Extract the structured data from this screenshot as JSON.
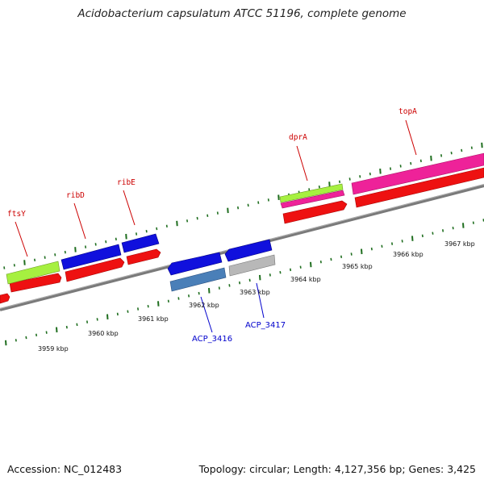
{
  "title": "Acidobacterium capsulatum ATCC 51196, complete genome",
  "footer": {
    "accession": "Accession: NC_012483",
    "summary": "Topology: circular; Length: 4,127,356 bp; Genes: 3,425"
  },
  "colors": {
    "backbone": "#808080",
    "tick": "#1f6e1f",
    "gene_red": "#ee1111",
    "gene_blue": "#1010dd",
    "gene_lime": "#a6f040",
    "gene_pink": "#ee2299",
    "gene_steel": "#4a7fb8",
    "gene_grey": "#b8b8b8",
    "label_top": "#cc0000",
    "label_bottom": "#0000cc"
  },
  "kbp_labels": [
    "3959 kbp",
    "3960 kbp",
    "3961 kbp",
    "3962 kbp",
    "3963 kbp",
    "3964 kbp",
    "3965 kbp",
    "3966 kbp",
    "3967 kbp"
  ],
  "gene_labels_top": [
    "ftsY",
    "ribD",
    "ribE",
    "dprA",
    "topA"
  ],
  "gene_labels_bottom": [
    "ACP_3416",
    "ACP_3417"
  ]
}
